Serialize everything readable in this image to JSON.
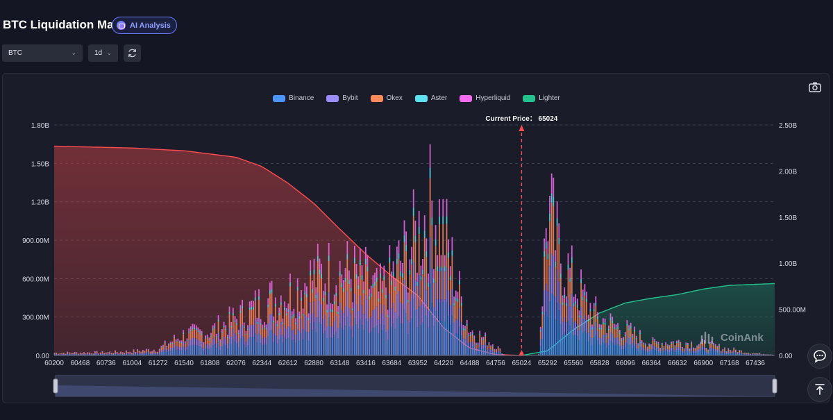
{
  "page": {
    "title": "BTC Liquidation Map",
    "ai_button": "AI Analysis",
    "coin_select": "BTC",
    "timeframe_select": "1d"
  },
  "icons": {
    "refresh": "refresh-icon",
    "camera": "camera-icon",
    "chat": "chat-icon",
    "scroll_top": "scroll-top-icon"
  },
  "watermark": "CoinAnk",
  "colors": {
    "Binance": "#4d96ff",
    "Bybit": "#9b8cff",
    "Okex": "#ff8a5c",
    "Aster": "#5ee0f0",
    "Hyperliquid": "#f26bf0",
    "Lighter": "#22c38e",
    "short_cum": "#ff4d4f",
    "long_cum": "#22c38e",
    "current_price": "#ff4d4f"
  },
  "chart_data": {
    "type": "bar",
    "legend": [
      "Binance",
      "Bybit",
      "Okex",
      "Aster",
      "Hyperliquid",
      "Lighter"
    ],
    "legend_position": "top-center",
    "grid": true,
    "x_ticks": [
      "60200",
      "60468",
      "60736",
      "61004",
      "61272",
      "61540",
      "61808",
      "62076",
      "62344",
      "62612",
      "62880",
      "63148",
      "63416",
      "63684",
      "63952",
      "64220",
      "64488",
      "64756",
      "65024",
      "65292",
      "65560",
      "65828",
      "66096",
      "66364",
      "66632",
      "66900",
      "67168",
      "67436"
    ],
    "xlim": [
      60200,
      67636
    ],
    "y_left_ticks": [
      "0.00",
      "300.00M",
      "600.00M",
      "900.00M",
      "1.20B",
      "1.50B",
      "1.80B"
    ],
    "y_left_range": [
      0,
      1800000000
    ],
    "y_right_ticks": [
      "0.00",
      "500.00M",
      "1.00B",
      "1.50B",
      "2.00B",
      "2.50B"
    ],
    "y_right_range": [
      0,
      2500000000
    ],
    "current_price_label": "Current Price： 65024",
    "current_price": 65024,
    "liquidation_profile": [
      {
        "price": 60200,
        "value": 25000000
      },
      {
        "price": 60736,
        "value": 30000000
      },
      {
        "price": 61004,
        "value": 40000000
      },
      {
        "price": 61272,
        "value": 60000000
      },
      {
        "price": 61400,
        "value": 130000000
      },
      {
        "price": 61540,
        "value": 200000000
      },
      {
        "price": 61808,
        "value": 230000000
      },
      {
        "price": 62076,
        "value": 350000000
      },
      {
        "price": 62344,
        "value": 500000000
      },
      {
        "price": 62612,
        "value": 600000000
      },
      {
        "price": 62880,
        "value": 750000000
      },
      {
        "price": 63148,
        "value": 820000000
      },
      {
        "price": 63416,
        "value": 720000000
      },
      {
        "price": 63550,
        "value": 580000000
      },
      {
        "price": 63684,
        "value": 760000000
      },
      {
        "price": 63952,
        "value": 1150000000
      },
      {
        "price": 64100,
        "value": 1450000000
      },
      {
        "price": 64220,
        "value": 1200000000
      },
      {
        "price": 64350,
        "value": 700000000
      },
      {
        "price": 64488,
        "value": 250000000
      },
      {
        "price": 64756,
        "value": 100000000
      },
      {
        "price": 64850,
        "value": 0
      },
      {
        "price": 65200,
        "value": 0
      },
      {
        "price": 65292,
        "value": 1450000000
      },
      {
        "price": 65400,
        "value": 1000000000
      },
      {
        "price": 65560,
        "value": 700000000
      },
      {
        "price": 65700,
        "value": 500000000
      },
      {
        "price": 65828,
        "value": 350000000
      },
      {
        "price": 66096,
        "value": 250000000
      },
      {
        "price": 66364,
        "value": 120000000
      },
      {
        "price": 66632,
        "value": 130000000
      },
      {
        "price": 66900,
        "value": 110000000
      },
      {
        "price": 67168,
        "value": 60000000
      },
      {
        "price": 67436,
        "value": 20000000
      },
      {
        "price": 67636,
        "value": 10000000
      }
    ],
    "exchange_share": {
      "Binance": 0.34,
      "Bybit": 0.22,
      "Okex": 0.28,
      "Aster": 0.05,
      "Hyperliquid": 0.11,
      "Lighter": 0.0
    },
    "cumulative_short": [
      {
        "price": 60200,
        "value": 2270000000
      },
      {
        "price": 61000,
        "value": 2250000000
      },
      {
        "price": 61540,
        "value": 2220000000
      },
      {
        "price": 62076,
        "value": 2150000000
      },
      {
        "price": 62344,
        "value": 2050000000
      },
      {
        "price": 62612,
        "value": 1870000000
      },
      {
        "price": 62880,
        "value": 1650000000
      },
      {
        "price": 63148,
        "value": 1370000000
      },
      {
        "price": 63416,
        "value": 1100000000
      },
      {
        "price": 63684,
        "value": 860000000
      },
      {
        "price": 63952,
        "value": 650000000
      },
      {
        "price": 64220,
        "value": 300000000
      },
      {
        "price": 64488,
        "value": 80000000
      },
      {
        "price": 64756,
        "value": 10000000
      },
      {
        "price": 65024,
        "value": 0
      }
    ],
    "cumulative_long": [
      {
        "price": 65024,
        "value": 0
      },
      {
        "price": 65292,
        "value": 50000000
      },
      {
        "price": 65560,
        "value": 280000000
      },
      {
        "price": 65828,
        "value": 460000000
      },
      {
        "price": 66096,
        "value": 570000000
      },
      {
        "price": 66364,
        "value": 620000000
      },
      {
        "price": 66632,
        "value": 660000000
      },
      {
        "price": 66900,
        "value": 720000000
      },
      {
        "price": 67168,
        "value": 760000000
      },
      {
        "price": 67636,
        "value": 780000000
      }
    ]
  }
}
